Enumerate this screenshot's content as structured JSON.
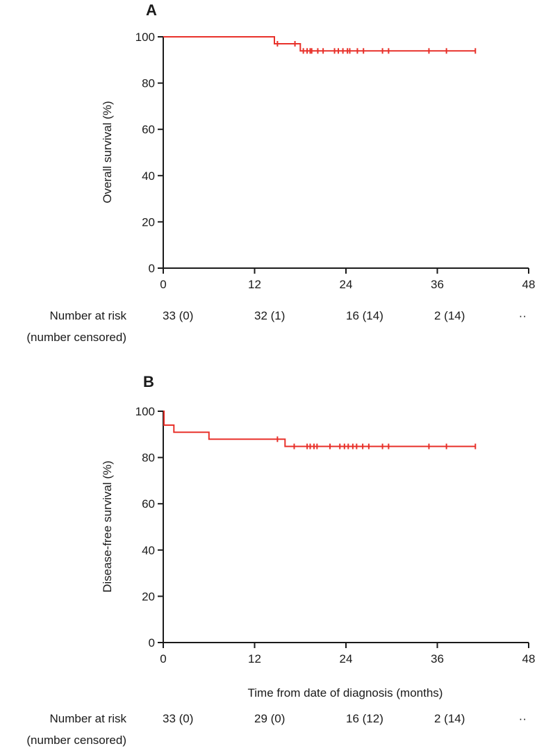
{
  "chart_data": [
    {
      "type": "line",
      "panel_label": "A",
      "ylabel": "Overall survival (%)",
      "xlabel": "",
      "xlim": [
        0,
        48
      ],
      "ylim": [
        0,
        100
      ],
      "x_ticks": [
        "0",
        "12",
        "24",
        "36",
        "48"
      ],
      "y_ticks": [
        "0",
        "20",
        "40",
        "60",
        "80",
        "100"
      ],
      "series": [
        {
          "color": "#e8312a",
          "step_points": [
            [
              0,
              100
            ],
            [
              14.6,
              100
            ],
            [
              14.6,
              97
            ],
            [
              18,
              97
            ],
            [
              18,
              93.9
            ],
            [
              41,
              93.9
            ]
          ],
          "censored": [
            [
              15,
              97
            ],
            [
              17.3,
              97
            ],
            [
              18.4,
              93.9
            ],
            [
              18.9,
              93.9
            ],
            [
              19.3,
              93.9
            ],
            [
              19.5,
              93.9
            ],
            [
              20.3,
              93.9
            ],
            [
              21,
              93.9
            ],
            [
              22.5,
              93.9
            ],
            [
              23,
              93.9
            ],
            [
              23.6,
              93.9
            ],
            [
              24.2,
              93.9
            ],
            [
              24.5,
              93.9
            ],
            [
              25.5,
              93.9
            ],
            [
              26.3,
              93.9
            ],
            [
              28.8,
              93.9
            ],
            [
              29.6,
              93.9
            ],
            [
              34.9,
              93.9
            ],
            [
              37.2,
              93.9
            ],
            [
              41,
              93.9
            ]
          ]
        }
      ],
      "risk_table": {
        "label_line1": "Number at risk",
        "label_line2": "(number censored)",
        "values": [
          "33 (0)",
          "32 (1)",
          "16 (14)",
          "2 (14)",
          "··"
        ]
      }
    },
    {
      "type": "line",
      "panel_label": "B",
      "ylabel": "Disease-free survival (%)",
      "xlabel": "Time from date of diagnosis (months)",
      "xlim": [
        0,
        48
      ],
      "ylim": [
        0,
        100
      ],
      "x_ticks": [
        "0",
        "12",
        "24",
        "36",
        "48"
      ],
      "y_ticks": [
        "0",
        "20",
        "40",
        "60",
        "80",
        "100"
      ],
      "series": [
        {
          "color": "#e8312a",
          "step_points": [
            [
              0,
              100
            ],
            [
              0.1,
              100
            ],
            [
              0.1,
              94
            ],
            [
              1.4,
              94
            ],
            [
              1.4,
              90.9
            ],
            [
              6,
              90.9
            ],
            [
              6,
              87.9
            ],
            [
              16,
              87.9
            ],
            [
              16,
              84.8
            ],
            [
              41,
              84.8
            ]
          ],
          "censored": [
            [
              15,
              87.9
            ],
            [
              17.2,
              84.8
            ],
            [
              18.9,
              84.8
            ],
            [
              19.3,
              84.8
            ],
            [
              19.8,
              84.8
            ],
            [
              20.2,
              84.8
            ],
            [
              21.9,
              84.8
            ],
            [
              23.2,
              84.8
            ],
            [
              23.8,
              84.8
            ],
            [
              24.3,
              84.8
            ],
            [
              24.9,
              84.8
            ],
            [
              25.4,
              84.8
            ],
            [
              26.2,
              84.8
            ],
            [
              27,
              84.8
            ],
            [
              28.8,
              84.8
            ],
            [
              29.6,
              84.8
            ],
            [
              34.9,
              84.8
            ],
            [
              37.2,
              84.8
            ],
            [
              41,
              84.8
            ]
          ]
        }
      ],
      "risk_table": {
        "label_line1": "Number at risk",
        "label_line2": "(number censored)",
        "values": [
          "33 (0)",
          "29 (0)",
          "16 (12)",
          "2 (14)",
          "··"
        ]
      }
    }
  ]
}
